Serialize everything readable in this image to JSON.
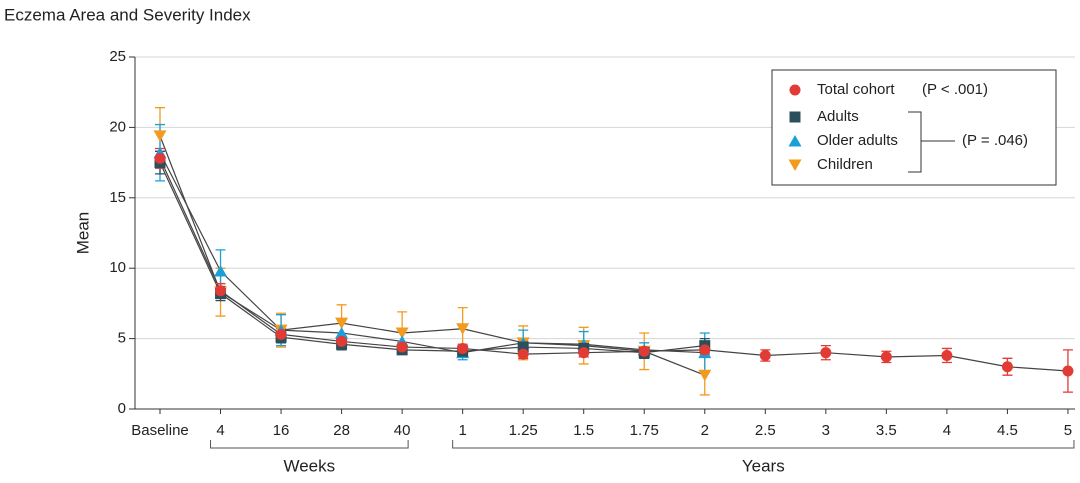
{
  "chart_data": {
    "type": "line",
    "title": "Eczema Area and Severity Index",
    "y_label": "Mean",
    "categories": [
      "Baseline",
      "4",
      "16",
      "28",
      "40",
      "1",
      "1.25",
      "1.5",
      "1.75",
      "2",
      "2.5",
      "3",
      "3.5",
      "4",
      "4.5",
      "5"
    ],
    "x_group_labels": [
      "Weeks",
      "Years"
    ],
    "ylim": [
      0,
      25
    ],
    "yticks": [
      0,
      5,
      10,
      15,
      20,
      25
    ],
    "grid": true,
    "series": [
      {
        "name": "Total cohort",
        "color": "#e23b36",
        "marker": "circle",
        "values": [
          17.8,
          8.4,
          5.3,
          4.8,
          4.4,
          4.3,
          3.9,
          4.0,
          4.1,
          4.2,
          3.8,
          4.0,
          3.7,
          3.8,
          3.0,
          2.7
        ],
        "errors": [
          0.7,
          0.5,
          0.4,
          0.3,
          0.3,
          0.3,
          0.3,
          0.3,
          0.3,
          0.3,
          0.4,
          0.5,
          0.4,
          0.5,
          0.6,
          1.5
        ]
      },
      {
        "name": "Adults",
        "color": "#2c4f5c",
        "marker": "square",
        "values": [
          17.5,
          8.2,
          5.1,
          4.6,
          4.2,
          4.1,
          4.4,
          4.3,
          4.0,
          4.5,
          null,
          null,
          null,
          null,
          null,
          null
        ],
        "errors": [
          0.8,
          0.5,
          0.4,
          0.4,
          0.3,
          0.3,
          0.4,
          0.4,
          0.4,
          0.5,
          null,
          null,
          null,
          null,
          null,
          null
        ]
      },
      {
        "name": "Older adults",
        "color": "#1b9fd9",
        "marker": "triangle-up",
        "values": [
          18.2,
          9.8,
          5.6,
          5.4,
          4.8,
          4.0,
          4.7,
          4.6,
          4.2,
          4.0,
          null,
          null,
          null,
          null,
          null,
          null
        ],
        "errors": [
          2.0,
          1.5,
          1.1,
          1.0,
          0.9,
          0.5,
          0.9,
          0.9,
          0.5,
          1.4,
          null,
          null,
          null,
          null,
          null,
          null
        ]
      },
      {
        "name": "Children",
        "color": "#f39b1f",
        "marker": "triangle-down",
        "values": [
          19.4,
          8.3,
          5.6,
          6.1,
          5.4,
          5.7,
          4.7,
          4.5,
          4.1,
          2.4,
          null,
          null,
          null,
          null,
          null,
          null
        ],
        "errors": [
          2.0,
          1.7,
          1.2,
          1.3,
          1.5,
          1.5,
          1.2,
          1.3,
          1.3,
          1.4,
          null,
          null,
          null,
          null,
          null,
          null
        ]
      }
    ],
    "legend_position": "upper right",
    "annotations": [
      "(P < .001)",
      "(P = .046)"
    ]
  }
}
